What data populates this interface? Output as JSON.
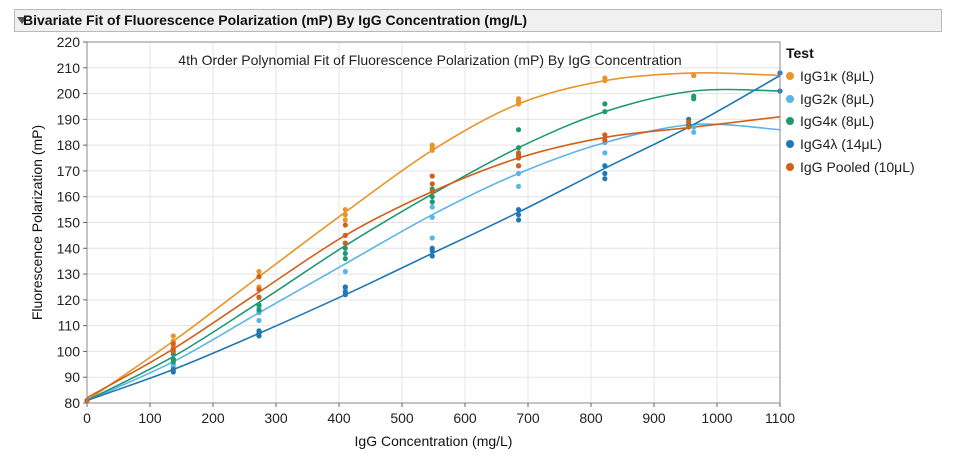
{
  "header": {
    "title": "Bivariate Fit of Fluorescence Polarization (mP) By IgG Concentration (mg/L)"
  },
  "legend": {
    "title": "Test"
  },
  "chart_data": {
    "type": "scatter",
    "title": "4th Order Polynomial Fit of Fluorescence Polarization (mP) By IgG Concentration",
    "xlabel": "IgG Concentration (mg/L)",
    "ylabel": "Fluorescence Polarization (mP)",
    "xlim": [
      0,
      1100
    ],
    "ylim": [
      80,
      220
    ],
    "xticks": [
      0,
      100,
      200,
      300,
      400,
      500,
      600,
      700,
      800,
      900,
      1000,
      1100
    ],
    "yticks": [
      80,
      90,
      100,
      110,
      120,
      130,
      140,
      150,
      160,
      170,
      180,
      190,
      200,
      210,
      220
    ],
    "grid": true,
    "legend_position": "right",
    "series": [
      {
        "name": "IgG1κ (8μL)",
        "color": "#e8952c",
        "x": [
          0,
          137,
          137,
          137,
          273,
          273,
          273,
          410,
          410,
          410,
          548,
          548,
          548,
          685,
          685,
          685,
          822,
          822,
          963,
          963
        ],
        "y": [
          81,
          106,
          104,
          102,
          131,
          129,
          125,
          155,
          153,
          151,
          180,
          178,
          179,
          198,
          196,
          197,
          205,
          206,
          207,
          207
        ],
        "fit": [
          [
            0,
            81
          ],
          [
            137,
            104
          ],
          [
            273,
            129
          ],
          [
            410,
            154
          ],
          [
            548,
            178
          ],
          [
            685,
            196
          ],
          [
            822,
            205
          ],
          [
            963,
            208
          ],
          [
            1100,
            207
          ]
        ]
      },
      {
        "name": "IgG2κ (8μL)",
        "color": "#5bb5e6",
        "x": [
          0,
          137,
          137,
          137,
          273,
          273,
          273,
          410,
          410,
          410,
          548,
          548,
          548,
          685,
          685,
          685,
          822,
          822,
          963,
          963
        ],
        "y": [
          81,
          97,
          95,
          94,
          117,
          115,
          112,
          131,
          125,
          124,
          156,
          152,
          144,
          172,
          169,
          164,
          181,
          177,
          187,
          185
        ],
        "fit": [
          [
            0,
            81
          ],
          [
            137,
            96
          ],
          [
            273,
            115
          ],
          [
            410,
            134
          ],
          [
            548,
            153
          ],
          [
            685,
            169
          ],
          [
            822,
            181
          ],
          [
            963,
            188
          ],
          [
            1100,
            186
          ]
        ]
      },
      {
        "name": "IgG4κ (8μL)",
        "color": "#1e9a73",
        "x": [
          0,
          137,
          137,
          137,
          273,
          273,
          273,
          410,
          410,
          410,
          548,
          548,
          548,
          685,
          685,
          685,
          822,
          822,
          963,
          963
        ],
        "y": [
          81,
          99,
          97,
          96,
          121,
          118,
          116,
          140,
          138,
          136,
          163,
          160,
          158,
          186,
          179,
          176,
          196,
          193,
          199,
          198
        ],
        "fit": [
          [
            0,
            81
          ],
          [
            137,
            98
          ],
          [
            273,
            119
          ],
          [
            410,
            141
          ],
          [
            548,
            161
          ],
          [
            685,
            179
          ],
          [
            822,
            193
          ],
          [
            963,
            201
          ],
          [
            1100,
            201
          ]
        ]
      },
      {
        "name": "IgG4λ (14μL)",
        "color": "#1f78b4",
        "x": [
          0,
          137,
          137,
          273,
          273,
          273,
          410,
          410,
          410,
          548,
          548,
          548,
          685,
          685,
          685,
          822,
          822,
          822,
          955,
          955,
          1100,
          1100
        ],
        "y": [
          81,
          93,
          92,
          108,
          107,
          106,
          125,
          123,
          122,
          140,
          139,
          137,
          155,
          153,
          151,
          172,
          169,
          167,
          190,
          188,
          208,
          201
        ],
        "fit": [
          [
            0,
            81
          ],
          [
            137,
            93
          ],
          [
            273,
            107
          ],
          [
            410,
            122
          ],
          [
            548,
            138
          ],
          [
            685,
            154
          ],
          [
            822,
            171
          ],
          [
            963,
            188
          ],
          [
            1100,
            207
          ]
        ]
      },
      {
        "name": "IgG Pooled (10μL)",
        "color": "#d2601a",
        "x": [
          0,
          137,
          137,
          137,
          273,
          273,
          273,
          410,
          410,
          410,
          548,
          548,
          548,
          685,
          685,
          685,
          822,
          822,
          955,
          955
        ],
        "y": [
          81,
          103,
          101,
          100,
          129,
          124,
          121,
          149,
          145,
          142,
          168,
          165,
          162,
          177,
          175,
          172,
          184,
          182,
          189,
          187
        ],
        "fit": [
          [
            0,
            82
          ],
          [
            137,
            101
          ],
          [
            273,
            123
          ],
          [
            410,
            145
          ],
          [
            548,
            162
          ],
          [
            685,
            175
          ],
          [
            822,
            183
          ],
          [
            963,
            187
          ],
          [
            1100,
            191
          ]
        ]
      }
    ]
  }
}
